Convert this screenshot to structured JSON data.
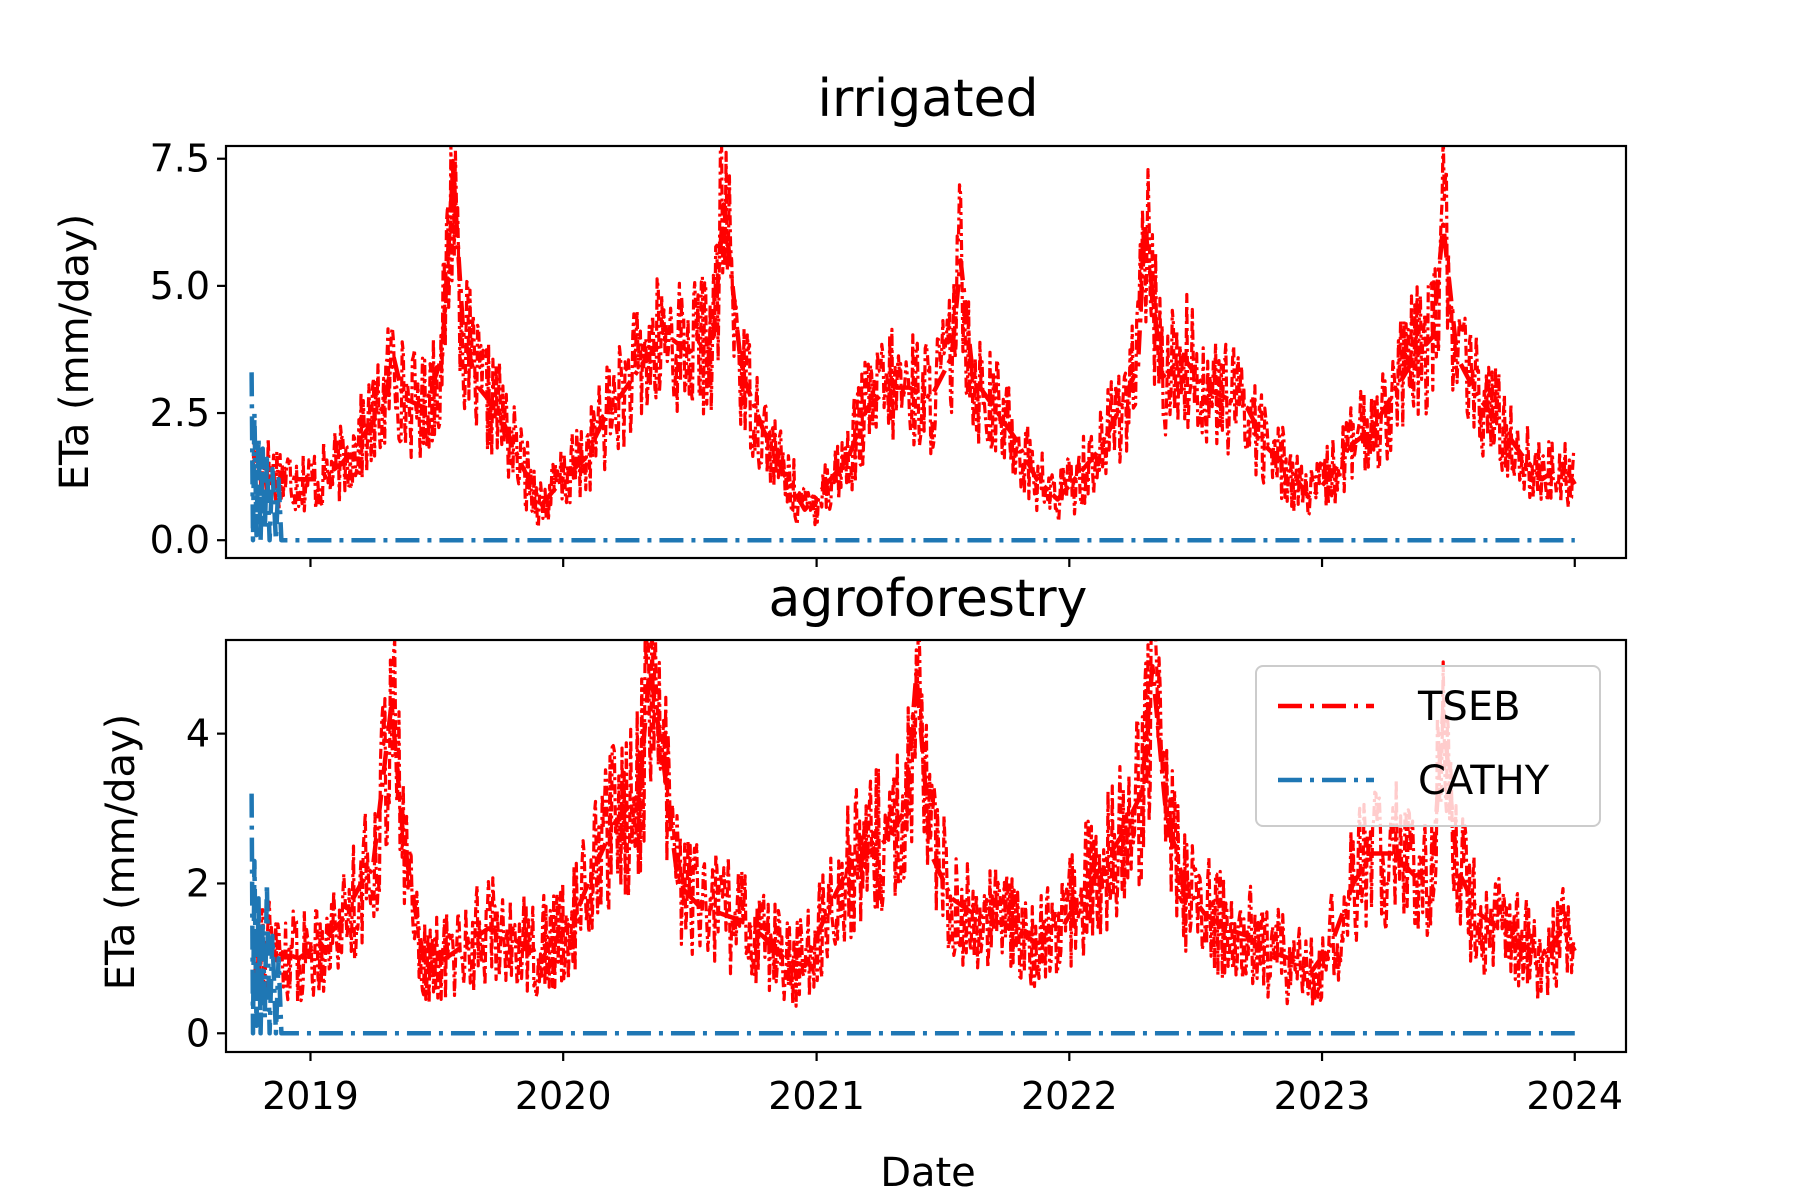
{
  "chart_data": [
    {
      "type": "line",
      "title": "irrigated",
      "xlabel": "",
      "ylabel": "ETa (mm/day)",
      "x_range": [
        "2018-09-01",
        "2024-03-15"
      ],
      "ylim": [
        -0.35,
        7.75
      ],
      "yticks": [
        0,
        2.5,
        5,
        7.5
      ],
      "ytick_labels": [
        "0.0",
        "2.5",
        "5.0",
        "7.5"
      ],
      "xticks": [
        "2019-01-01",
        "2020-01-01",
        "2021-01-01",
        "2022-01-01",
        "2023-01-01",
        "2024-01-01"
      ],
      "xtick_labels": [],
      "grid": false,
      "series": [
        {
          "name": "TSEB",
          "color": "#ff0000",
          "style": "dash-dot",
          "points": [
            [
              "2018-10-10",
              1.6
            ],
            [
              "2018-11-15",
              1.3
            ],
            [
              "2018-12-15",
              1.2
            ],
            [
              "2019-01-15",
              1.2
            ],
            [
              "2019-02-15",
              1.5
            ],
            [
              "2019-03-15",
              2.0
            ],
            [
              "2019-04-15",
              2.6
            ],
            [
              "2019-05-01",
              3.6
            ],
            [
              "2019-05-15",
              2.8
            ],
            [
              "2019-06-15",
              2.6
            ],
            [
              "2019-07-10",
              3.6
            ],
            [
              "2019-07-26",
              7.3
            ],
            [
              "2019-08-10",
              4.0
            ],
            [
              "2019-09-01",
              3.0
            ],
            [
              "2019-10-01",
              2.5
            ],
            [
              "2019-11-01",
              1.5
            ],
            [
              "2019-12-01",
              0.7
            ],
            [
              "2020-01-01",
              1.2
            ],
            [
              "2020-02-01",
              1.6
            ],
            [
              "2020-03-01",
              2.4
            ],
            [
              "2020-04-01",
              3.0
            ],
            [
              "2020-05-01",
              3.6
            ],
            [
              "2020-06-01",
              4.0
            ],
            [
              "2020-07-01",
              3.7
            ],
            [
              "2020-08-05",
              4.0
            ],
            [
              "2020-08-20",
              6.6
            ],
            [
              "2020-09-15",
              3.3
            ],
            [
              "2020-10-15",
              2.2
            ],
            [
              "2020-11-15",
              1.3
            ],
            [
              "2020-12-15",
              0.6
            ],
            [
              "2021-01-15",
              1.1
            ],
            [
              "2021-02-15",
              1.6
            ],
            [
              "2021-03-15",
              2.6
            ],
            [
              "2021-04-15",
              3.0
            ],
            [
              "2021-05-15",
              3.0
            ],
            [
              "2021-06-15",
              2.8
            ],
            [
              "2021-07-15",
              3.6
            ],
            [
              "2021-07-28",
              5.5
            ],
            [
              "2021-08-15",
              3.2
            ],
            [
              "2021-09-15",
              2.6
            ],
            [
              "2021-10-15",
              2.0
            ],
            [
              "2021-11-15",
              1.2
            ],
            [
              "2021-12-15",
              0.8
            ],
            [
              "2022-01-15",
              1.3
            ],
            [
              "2022-02-15",
              1.8
            ],
            [
              "2022-03-15",
              2.6
            ],
            [
              "2022-04-10",
              3.4
            ],
            [
              "2022-04-20",
              6.2
            ],
            [
              "2022-05-15",
              3.2
            ],
            [
              "2022-06-15",
              3.6
            ],
            [
              "2022-07-15",
              3.0
            ],
            [
              "2022-08-15",
              2.8
            ],
            [
              "2022-09-15",
              2.6
            ],
            [
              "2022-10-15",
              1.8
            ],
            [
              "2022-11-15",
              1.4
            ],
            [
              "2022-12-15",
              0.8
            ],
            [
              "2023-01-15",
              1.3
            ],
            [
              "2023-02-15",
              1.9
            ],
            [
              "2023-03-15",
              2.2
            ],
            [
              "2023-04-15",
              2.9
            ],
            [
              "2023-05-15",
              3.6
            ],
            [
              "2023-06-10",
              4.0
            ],
            [
              "2023-06-25",
              6.2
            ],
            [
              "2023-07-15",
              3.6
            ],
            [
              "2023-08-15",
              2.8
            ],
            [
              "2023-09-15",
              2.3
            ],
            [
              "2023-10-15",
              1.7
            ],
            [
              "2023-11-15",
              1.2
            ],
            [
              "2023-12-15",
              1.5
            ],
            [
              "2024-01-01",
              1.1
            ]
          ]
        },
        {
          "name": "CATHY",
          "color": "#1f77b4",
          "style": "dash-dot",
          "points": [
            [
              "2018-10-08",
              3.3
            ],
            [
              "2018-10-10",
              0.0
            ],
            [
              "2018-10-12",
              2.5
            ],
            [
              "2018-10-15",
              0.1
            ],
            [
              "2018-10-18",
              2.0
            ],
            [
              "2018-10-21",
              0.0
            ],
            [
              "2018-10-24",
              1.8
            ],
            [
              "2018-10-27",
              0.2
            ],
            [
              "2018-10-30",
              1.6
            ],
            [
              "2018-11-03",
              0.0
            ],
            [
              "2018-11-07",
              1.4
            ],
            [
              "2018-11-12",
              0.0
            ],
            [
              "2018-11-16",
              1.2
            ],
            [
              "2018-11-20",
              0.0
            ],
            [
              "2018-11-23",
              0.0
            ],
            [
              "2024-01-01",
              0.0
            ]
          ]
        }
      ]
    },
    {
      "type": "line",
      "title": "agroforestry",
      "xlabel": "Date",
      "ylabel": "ETa (mm/day)",
      "x_range": [
        "2018-09-01",
        "2024-03-15"
      ],
      "ylim": [
        -0.25,
        5.25
      ],
      "yticks": [
        0,
        2,
        4
      ],
      "ytick_labels": [
        "0",
        "2",
        "4"
      ],
      "xticks": [
        "2019-01-01",
        "2020-01-01",
        "2021-01-01",
        "2022-01-01",
        "2023-01-01",
        "2024-01-01"
      ],
      "xtick_labels": [
        "2019",
        "2020",
        "2021",
        "2022",
        "2023",
        "2024"
      ],
      "grid": false,
      "legend": "top-right",
      "series": [
        {
          "name": "TSEB",
          "color": "#ff0000",
          "style": "dash-dot",
          "points": [
            [
              "2018-10-10",
              1.3
            ],
            [
              "2018-11-15",
              1.1
            ],
            [
              "2018-12-15",
              1.0
            ],
            [
              "2019-01-15",
              1.2
            ],
            [
              "2019-02-15",
              1.5
            ],
            [
              "2019-03-15",
              2.0
            ],
            [
              "2019-04-01",
              2.2
            ],
            [
              "2019-04-28",
              4.4
            ],
            [
              "2019-05-15",
              2.6
            ],
            [
              "2019-06-15",
              0.9
            ],
            [
              "2019-07-15",
              1.0
            ],
            [
              "2019-08-15",
              1.2
            ],
            [
              "2019-09-15",
              1.4
            ],
            [
              "2019-10-15",
              1.3
            ],
            [
              "2019-11-15",
              1.1
            ],
            [
              "2019-12-15",
              1.2
            ],
            [
              "2020-01-15",
              1.5
            ],
            [
              "2020-02-15",
              2.2
            ],
            [
              "2020-03-15",
              2.8
            ],
            [
              "2020-04-20",
              3.2
            ],
            [
              "2020-05-05",
              4.9
            ],
            [
              "2020-05-25",
              3.6
            ],
            [
              "2020-06-15",
              2.0
            ],
            [
              "2020-07-15",
              1.7
            ],
            [
              "2020-08-15",
              1.6
            ],
            [
              "2020-09-15",
              1.5
            ],
            [
              "2020-10-15",
              1.3
            ],
            [
              "2020-11-15",
              1.0
            ],
            [
              "2020-12-15",
              0.9
            ],
            [
              "2021-01-15",
              1.6
            ],
            [
              "2021-02-15",
              2.2
            ],
            [
              "2021-03-15",
              2.4
            ],
            [
              "2021-04-15",
              2.6
            ],
            [
              "2021-05-10",
              3.0
            ],
            [
              "2021-05-25",
              4.8
            ],
            [
              "2021-06-15",
              2.4
            ],
            [
              "2021-07-15",
              1.8
            ],
            [
              "2021-08-15",
              1.6
            ],
            [
              "2021-09-15",
              1.5
            ],
            [
              "2021-10-15",
              1.4
            ],
            [
              "2021-11-15",
              1.2
            ],
            [
              "2021-12-15",
              1.3
            ],
            [
              "2022-01-15",
              1.8
            ],
            [
              "2022-02-15",
              2.2
            ],
            [
              "2022-03-15",
              2.6
            ],
            [
              "2022-04-15",
              3.2
            ],
            [
              "2022-05-01",
              4.9
            ],
            [
              "2022-05-20",
              3.0
            ],
            [
              "2022-06-15",
              2.0
            ],
            [
              "2022-07-15",
              1.6
            ],
            [
              "2022-08-15",
              1.4
            ],
            [
              "2022-09-15",
              1.3
            ],
            [
              "2022-10-15",
              1.1
            ],
            [
              "2022-11-15",
              1.0
            ],
            [
              "2022-12-15",
              0.8
            ],
            [
              "2023-01-15",
              1.2
            ],
            [
              "2023-02-15",
              2.0
            ],
            [
              "2023-03-15",
              2.4
            ],
            [
              "2023-04-15",
              2.4
            ],
            [
              "2023-05-15",
              2.1
            ],
            [
              "2023-06-10",
              2.2
            ],
            [
              "2023-06-25",
              4.3
            ],
            [
              "2023-07-15",
              2.2
            ],
            [
              "2023-08-15",
              1.6
            ],
            [
              "2023-09-15",
              1.4
            ],
            [
              "2023-10-15",
              1.2
            ],
            [
              "2023-11-15",
              1.0
            ],
            [
              "2023-12-15",
              1.4
            ],
            [
              "2024-01-01",
              1.1
            ]
          ]
        },
        {
          "name": "CATHY",
          "color": "#1f77b4",
          "style": "dash-dot",
          "points": [
            [
              "2018-10-08",
              3.2
            ],
            [
              "2018-10-10",
              0.0
            ],
            [
              "2018-10-12",
              2.3
            ],
            [
              "2018-10-15",
              0.1
            ],
            [
              "2018-10-18",
              1.8
            ],
            [
              "2018-10-21",
              0.0
            ],
            [
              "2018-10-24",
              1.5
            ],
            [
              "2018-10-27",
              0.2
            ],
            [
              "2018-10-30",
              2.0
            ],
            [
              "2018-11-03",
              0.0
            ],
            [
              "2018-11-07",
              1.3
            ],
            [
              "2018-11-12",
              0.0
            ],
            [
              "2018-11-16",
              1.0
            ],
            [
              "2018-11-20",
              0.0
            ],
            [
              "2018-11-23",
              0.0
            ],
            [
              "2024-01-01",
              0.0
            ]
          ]
        }
      ]
    }
  ]
}
